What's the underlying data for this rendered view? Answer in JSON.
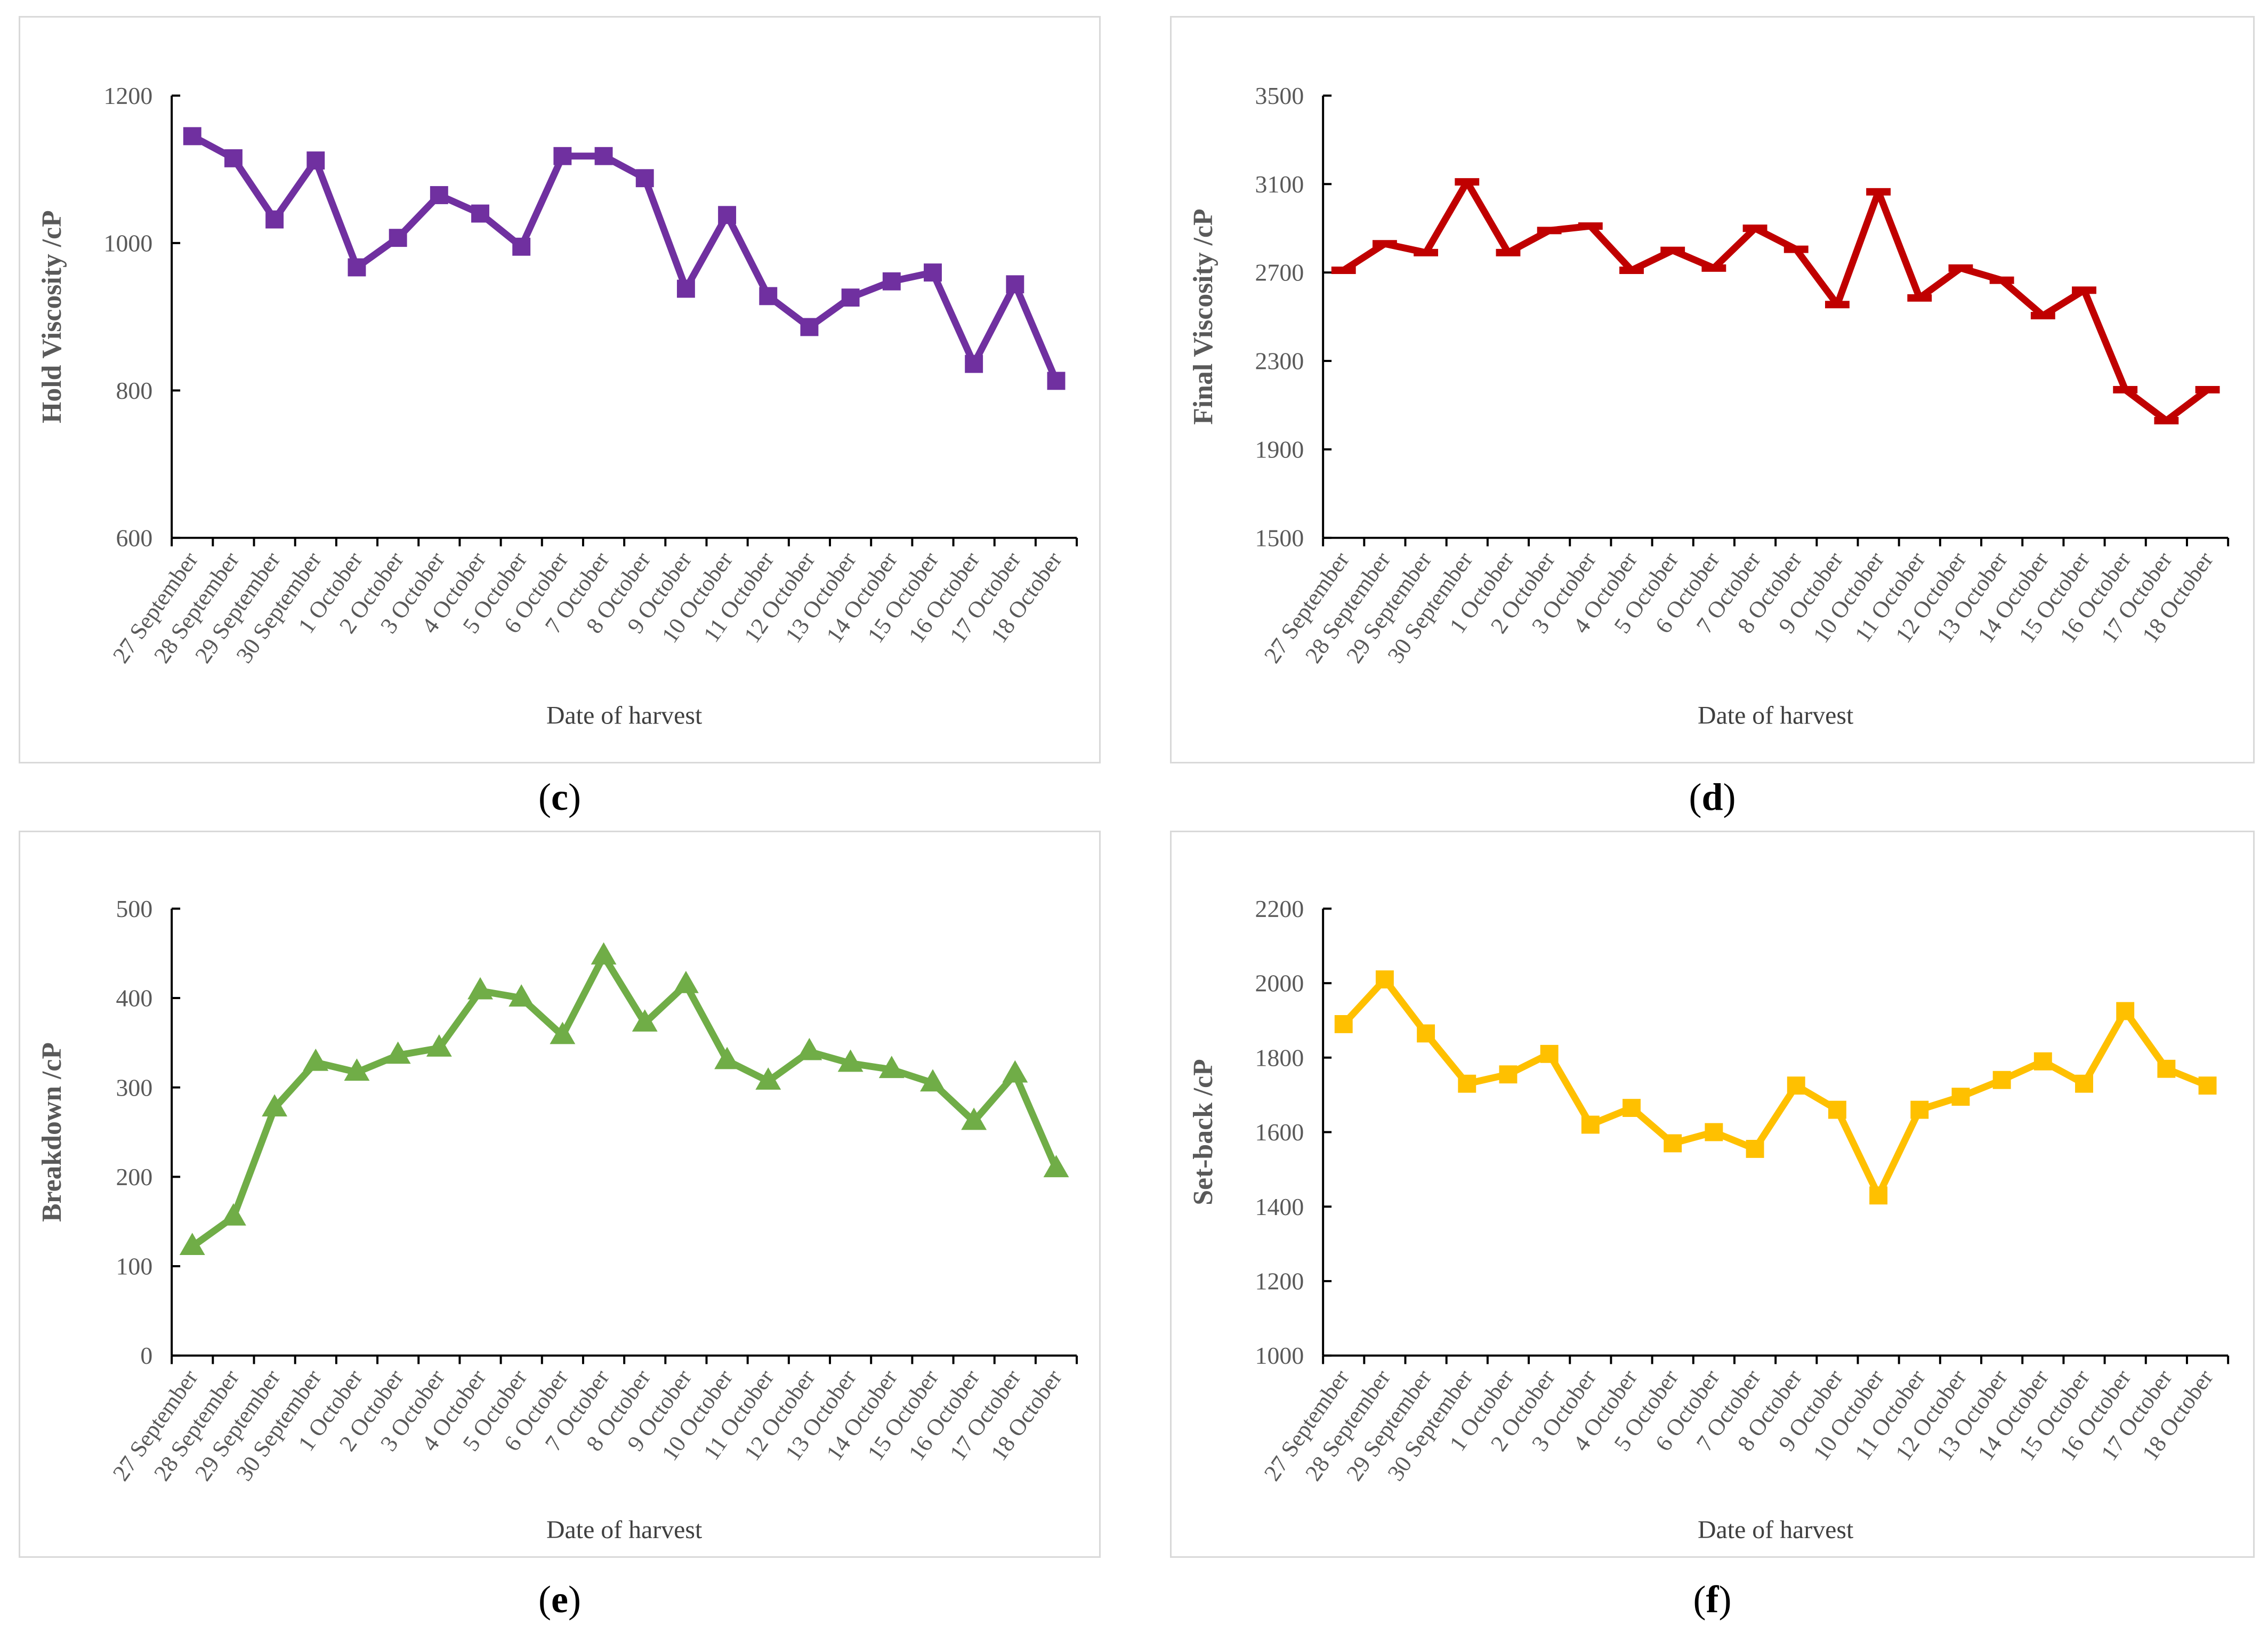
{
  "figure": {
    "panel_labels": [
      {
        "open": "(",
        "letter": "c",
        "close": ")"
      },
      {
        "open": "(",
        "letter": "d",
        "close": ")"
      },
      {
        "open": "(",
        "letter": "e",
        "close": ")"
      },
      {
        "open": "(",
        "letter": "f",
        "close": ")"
      }
    ],
    "colors": {
      "axis_line": "#000000",
      "tick_label": "#595959",
      "y_axis_title": "#595959",
      "x_axis_title": "#404040",
      "panel_border": "#d9d9d9",
      "hold_viscosity_series": "#7030A0",
      "final_viscosity_series": "#C00000",
      "breakdown_series": "#70AD47",
      "setback_series": "#FFC000"
    }
  },
  "chart_data": [
    {
      "type": "line",
      "panel": "c",
      "title": "",
      "ylabel": "Hold Viscosity /cP",
      "xlabel": "Date of harvest",
      "series_name": "Hold Viscosity",
      "color": "#7030A0",
      "marker": "square",
      "ylim": [
        600,
        1200
      ],
      "ytick_step": 200,
      "grid": false,
      "legend": "none",
      "categories": [
        "27 September",
        "28 September",
        "29 September",
        "30 September",
        "1 October",
        "2 October",
        "3 October",
        "4 October",
        "5 October",
        "6 October",
        "7 October",
        "8 October",
        "9 October",
        "10 October",
        "11 October",
        "12 October",
        "13 October",
        "14 October",
        "15 October",
        "16 October",
        "17 October",
        "18 October"
      ],
      "values": [
        1145,
        1115,
        1032,
        1112,
        967,
        1007,
        1065,
        1040,
        995,
        1118,
        1118,
        1088,
        938,
        1038,
        928,
        886,
        926,
        948,
        960,
        836,
        944,
        813
      ]
    },
    {
      "type": "line",
      "panel": "d",
      "title": "",
      "ylabel": "Final Viscosity /cP",
      "xlabel": "Date of harvest",
      "series_name": "Final Viscosity",
      "color": "#C00000",
      "marker": "dash",
      "ylim": [
        1500,
        3500
      ],
      "ytick_step": 400,
      "grid": false,
      "legend": "none",
      "categories": [
        "27 September",
        "28 September",
        "29 September",
        "30 September",
        "1 October",
        "2 October",
        "3 October",
        "4 October",
        "5 October",
        "6 October",
        "7 October",
        "8 October",
        "9 October",
        "10 October",
        "11 October",
        "12 October",
        "13 October",
        "14 October",
        "15 October",
        "16 October",
        "17 October",
        "18 October"
      ],
      "values": [
        2710,
        2830,
        2790,
        3110,
        2790,
        2890,
        2910,
        2710,
        2800,
        2720,
        2900,
        2805,
        2555,
        3065,
        2585,
        2720,
        2665,
        2505,
        2620,
        2170,
        2030,
        2170
      ]
    },
    {
      "type": "line",
      "panel": "e",
      "title": "",
      "ylabel": "Breakdown /cP",
      "xlabel": "Date of harvest",
      "series_name": "Breakdown",
      "color": "#70AD47",
      "marker": "triangle",
      "ylim": [
        0,
        500
      ],
      "ytick_step": 100,
      "grid": false,
      "legend": "none",
      "categories": [
        "27 September",
        "28 September",
        "29 September",
        "30 September",
        "1 October",
        "2 October",
        "3 October",
        "4 October",
        "5 October",
        "6 October",
        "7 October",
        "8 October",
        "9 October",
        "10 October",
        "11 October",
        "12 October",
        "13 October",
        "14 October",
        "15 October",
        "16 October",
        "17 October",
        "18 October"
      ],
      "values": [
        122,
        155,
        277,
        328,
        317,
        336,
        344,
        408,
        400,
        358,
        447,
        372,
        415,
        330,
        307,
        340,
        327,
        320,
        305,
        262,
        315,
        209
      ]
    },
    {
      "type": "line",
      "panel": "f",
      "title": "",
      "ylabel": "Set-back /cP",
      "xlabel": "Date of harvest",
      "series_name": "Set-back",
      "color": "#FFC000",
      "marker": "square",
      "ylim": [
        1000,
        2200
      ],
      "ytick_step": 200,
      "grid": false,
      "legend": "none",
      "categories": [
        "27 September",
        "28 September",
        "29 September",
        "30 September",
        "1 October",
        "2 October",
        "3 October",
        "4 October",
        "5 October",
        "6 October",
        "7 October",
        "8 October",
        "9 October",
        "10 October",
        "11 October",
        "12 October",
        "13 October",
        "14 October",
        "15 October",
        "16 October",
        "17 October",
        "18 October"
      ],
      "values": [
        1890,
        2010,
        1865,
        1730,
        1755,
        1810,
        1620,
        1665,
        1570,
        1600,
        1555,
        1725,
        1660,
        1430,
        1660,
        1695,
        1740,
        1790,
        1730,
        1925,
        1770,
        1725
      ]
    }
  ]
}
